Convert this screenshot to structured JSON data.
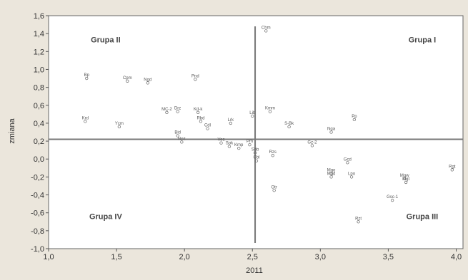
{
  "chart_data": {
    "type": "scatter",
    "xlabel": "2011",
    "ylabel": "zmiana",
    "xlim": [
      1.0,
      4.05
    ],
    "ylim": [
      -1.0,
      1.6
    ],
    "xticks": [
      "1,0",
      "1,5",
      "2,0",
      "2,5",
      "3,0",
      "3,5",
      "4,0"
    ],
    "yticks": [
      "-1,0",
      "-0,8",
      "-0,6",
      "-0,4",
      "-0,2",
      "0,0",
      "0,2",
      "0,4",
      "0,6",
      "0,8",
      "1,0",
      "1,2",
      "1,4",
      "1,6"
    ],
    "grid": false,
    "reference_lines": {
      "x": 2.52,
      "y": 0.22
    },
    "quadrant_labels": [
      {
        "text": "Grupa II",
        "x": 1.42,
        "y": 1.3
      },
      {
        "text": "Grupa I",
        "x": 3.75,
        "y": 1.3
      },
      {
        "text": "Grupa IV",
        "x": 1.42,
        "y": -0.67
      },
      {
        "text": "Grupa III",
        "x": 3.75,
        "y": -0.67
      }
    ],
    "points": [
      {
        "label": "Chm",
        "x": 2.6,
        "y": 1.43
      },
      {
        "label": "Bp",
        "x": 1.28,
        "y": 0.9
      },
      {
        "label": "Cpm",
        "x": 1.58,
        "y": 0.87
      },
      {
        "label": "Ngd",
        "x": 1.73,
        "y": 0.85
      },
      {
        "label": "Pnd",
        "x": 2.08,
        "y": 0.89
      },
      {
        "label": "MC-2",
        "x": 1.87,
        "y": 0.52
      },
      {
        "label": "Drz",
        "x": 1.95,
        "y": 0.53
      },
      {
        "label": "Kd-k",
        "x": 2.1,
        "y": 0.52
      },
      {
        "label": "Lib",
        "x": 2.5,
        "y": 0.48
      },
      {
        "label": "Kmm",
        "x": 2.63,
        "y": 0.53
      },
      {
        "label": "Pp",
        "x": 3.25,
        "y": 0.44
      },
      {
        "label": "Krd",
        "x": 1.27,
        "y": 0.42
      },
      {
        "label": "Ycm",
        "x": 1.52,
        "y": 0.36
      },
      {
        "label": "Rbd",
        "x": 2.12,
        "y": 0.42
      },
      {
        "label": "Cdl",
        "x": 2.17,
        "y": 0.34
      },
      {
        "label": "Lrk",
        "x": 2.34,
        "y": 0.4
      },
      {
        "label": "S-Bk",
        "x": 2.77,
        "y": 0.36
      },
      {
        "label": "Nga",
        "x": 3.08,
        "y": 0.3
      },
      {
        "label": "Bid",
        "x": 1.95,
        "y": 0.26
      },
      {
        "label": "Nez",
        "x": 1.98,
        "y": 0.19
      },
      {
        "label": "Vec",
        "x": 2.27,
        "y": 0.18
      },
      {
        "label": "Spk",
        "x": 2.33,
        "y": 0.14
      },
      {
        "label": "Kmp",
        "x": 2.4,
        "y": 0.12
      },
      {
        "label": "Pm",
        "x": 2.48,
        "y": 0.16
      },
      {
        "label": "Sbb",
        "x": 2.52,
        "y": 0.07
      },
      {
        "label": "Cbl",
        "x": 2.53,
        "y": -0.02
      },
      {
        "label": "Rzs",
        "x": 2.65,
        "y": 0.04
      },
      {
        "label": "Gz-2",
        "x": 2.94,
        "y": 0.15
      },
      {
        "label": "Gcd",
        "x": 3.2,
        "y": -0.04
      },
      {
        "label": "Mgo",
        "x": 3.08,
        "y": -0.16
      },
      {
        "label": "Mgd",
        "x": 3.08,
        "y": -0.2
      },
      {
        "label": "Lpo",
        "x": 3.23,
        "y": -0.2
      },
      {
        "label": "Mgw",
        "x": 3.62,
        "y": -0.22
      },
      {
        "label": "Mgt",
        "x": 3.63,
        "y": -0.26
      },
      {
        "label": "Rgt",
        "x": 3.97,
        "y": -0.12
      },
      {
        "label": "Otr",
        "x": 2.66,
        "y": -0.35
      },
      {
        "label": "Gsc-1",
        "x": 3.53,
        "y": -0.46
      },
      {
        "label": "Rzt",
        "x": 3.28,
        "y": -0.7
      }
    ]
  },
  "colors": {
    "background": "#ebe6dc",
    "plot": "#ffffff",
    "axis": "#555555",
    "reference_line": "#777777"
  }
}
